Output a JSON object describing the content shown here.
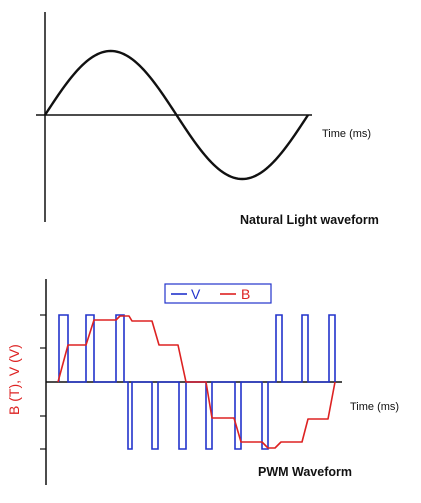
{
  "top_diagram": {
    "x_axis_label": "Time (ms)",
    "caption": "Natural Light waveform"
  },
  "bottom_diagram": {
    "y_axis_label": "B (T), V (V)",
    "x_axis_label": "Time (ms)",
    "caption": "PWM Waveform",
    "legend": {
      "v_label": "V",
      "b_label": "B"
    },
    "colors": {
      "v": "#2233cc",
      "b": "#dd2222",
      "axis": "#111111"
    }
  }
}
